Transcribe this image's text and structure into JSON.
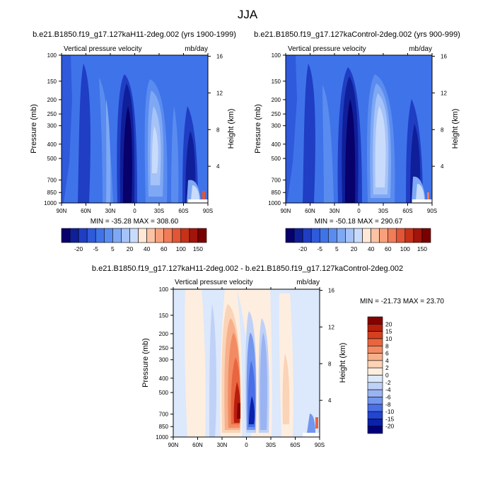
{
  "main_title": "JJA",
  "colors": {
    "cmap_full": [
      "#08006b",
      "#0f1f99",
      "#1f3ec4",
      "#2f5adb",
      "#3f73ea",
      "#5a8cf0",
      "#7fa8f4",
      "#a5c3f8",
      "#c9dbfb",
      "#ffe8d6",
      "#fcc2a3",
      "#f8a07c",
      "#f27c58",
      "#e25536",
      "#c73218",
      "#a1150b",
      "#7a0000"
    ],
    "cmap_diff": [
      "#00007d",
      "#0a21a8",
      "#2245d2",
      "#4a6fe6",
      "#7396ee",
      "#9ab4f2",
      "#bfd1f7",
      "#dce8fb",
      "#fdeee0",
      "#fbd3b6",
      "#f7b08b",
      "#f28b63",
      "#e9653f",
      "#d5401f",
      "#b81e0c",
      "#860000"
    ]
  },
  "chart_data": [
    {
      "type": "contour",
      "title": "b.e21.B1850.f19_g17.127kaH11-2deg.002 (yrs 1900-1999)",
      "left_string": "Vertical pressure velocity",
      "right_string": "mb/day",
      "ylabel": "Pressure (mb)",
      "y2label": "Height (km)",
      "xticks": [
        "90N",
        "60N",
        "30N",
        "0",
        "30S",
        "60S",
        "90S"
      ],
      "yticks": [
        100,
        150,
        200,
        250,
        300,
        400,
        500,
        700,
        850,
        1000
      ],
      "height_ticks": [
        4,
        8,
        12,
        16
      ],
      "stats": "MIN = -35.28  MAX = 308.60",
      "colorbar_labels": [
        "-20",
        "-5",
        "5",
        "20",
        "40",
        "60",
        "100",
        "150"
      ]
    },
    {
      "type": "contour",
      "title": "b.e21.B1850.f19_g17.127kaControl-2deg.002 (yrs 900-999)",
      "left_string": "Vertical pressure velocity",
      "right_string": "mb/day",
      "ylabel": "Pressure (mb)",
      "y2label": "Height (km)",
      "xticks": [
        "90N",
        "60N",
        "30N",
        "0",
        "30S",
        "60S",
        "90S"
      ],
      "yticks": [
        100,
        150,
        200,
        250,
        300,
        400,
        500,
        700,
        850,
        1000
      ],
      "height_ticks": [
        4,
        8,
        12,
        16
      ],
      "stats": "MIN = -50.18  MAX = 290.67",
      "colorbar_labels": [
        "-20",
        "-5",
        "5",
        "20",
        "40",
        "60",
        "100",
        "150"
      ]
    },
    {
      "type": "contour",
      "title": "b.e21.B1850.f19_g17.127kaH11-2deg.002 - b.e21.B1850.f19_g17.127kaControl-2deg.002",
      "left_string": "Vertical pressure velocity",
      "right_string": "mb/day",
      "ylabel": "Pressure (mb)",
      "y2label": "Height (km)",
      "xticks": [
        "90N",
        "60N",
        "30N",
        "0",
        "30S",
        "60S",
        "90S"
      ],
      "yticks": [
        100,
        150,
        200,
        250,
        300,
        400,
        500,
        700,
        850,
        1000
      ],
      "height_ticks": [
        4,
        8,
        12,
        16
      ],
      "stats": "MIN = -21.73  MAX =  23.70",
      "colorbar_labels": [
        "20",
        "15",
        "10",
        "8",
        "6",
        "4",
        "2",
        "0",
        "-2",
        "-4",
        "-6",
        "-8",
        "-10",
        "-15",
        "-20"
      ]
    }
  ]
}
